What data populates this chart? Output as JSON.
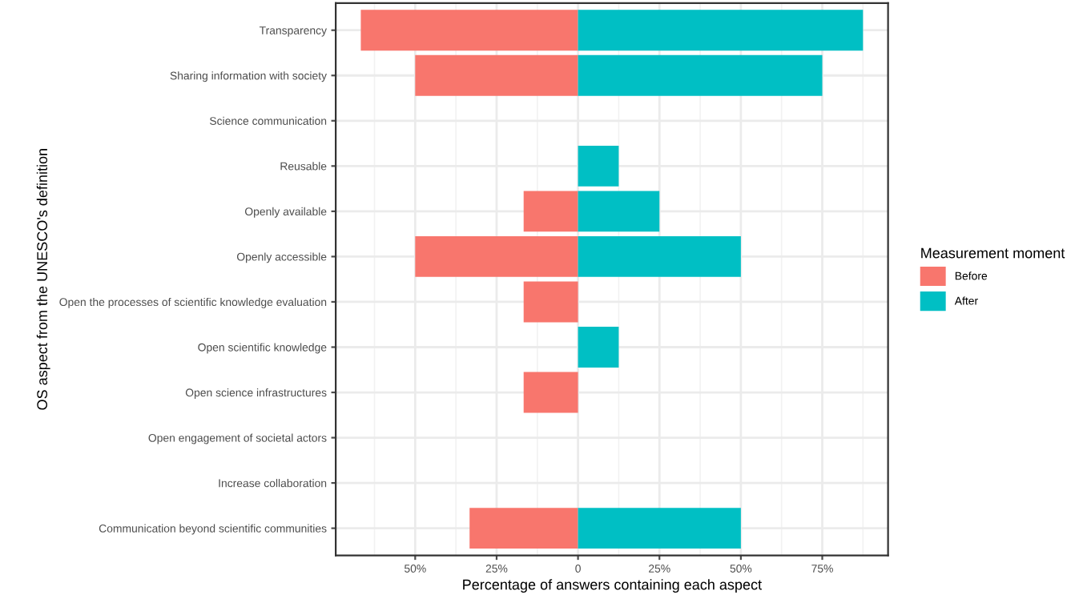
{
  "chart_data": {
    "type": "bar",
    "orientation": "horizontal",
    "xlabel": "Percentage of answers containing each aspect",
    "ylabel": "OS aspect from the UNESCO's definition",
    "legend_title": "Measurement moment",
    "legend": "right",
    "categories": [
      "Transparency",
      "Sharing information with society",
      "Science communication",
      "Reusable",
      "Openly available",
      "Openly accessible",
      "Open the processes of scientific knowledge evaluation",
      "Open scientific knowledge",
      "Open science infrastructures",
      "Open engagement of societal actors",
      "Increase collaboration",
      "Communication beyond scientific communities"
    ],
    "series": [
      {
        "name": "Before",
        "color": "#f8766d",
        "values": [
          -66.7,
          -50,
          0,
          0,
          -16.7,
          -50,
          -16.7,
          0,
          -16.7,
          0,
          0,
          -33.3
        ]
      },
      {
        "name": "After",
        "color": "#00bfc4",
        "values": [
          87.5,
          75,
          0,
          12.5,
          25,
          50,
          0,
          12.5,
          0,
          0,
          0,
          50
        ]
      }
    ],
    "xlim": [
      -74.4,
      95.2
    ],
    "xticks": [
      {
        "value": -50,
        "label": "50%"
      },
      {
        "value": -25,
        "label": "25%"
      },
      0,
      {
        "value": 25,
        "label": "25%"
      },
      {
        "value": 50,
        "label": "50%"
      },
      {
        "value": 75,
        "label": "75%"
      }
    ],
    "grid": true
  }
}
